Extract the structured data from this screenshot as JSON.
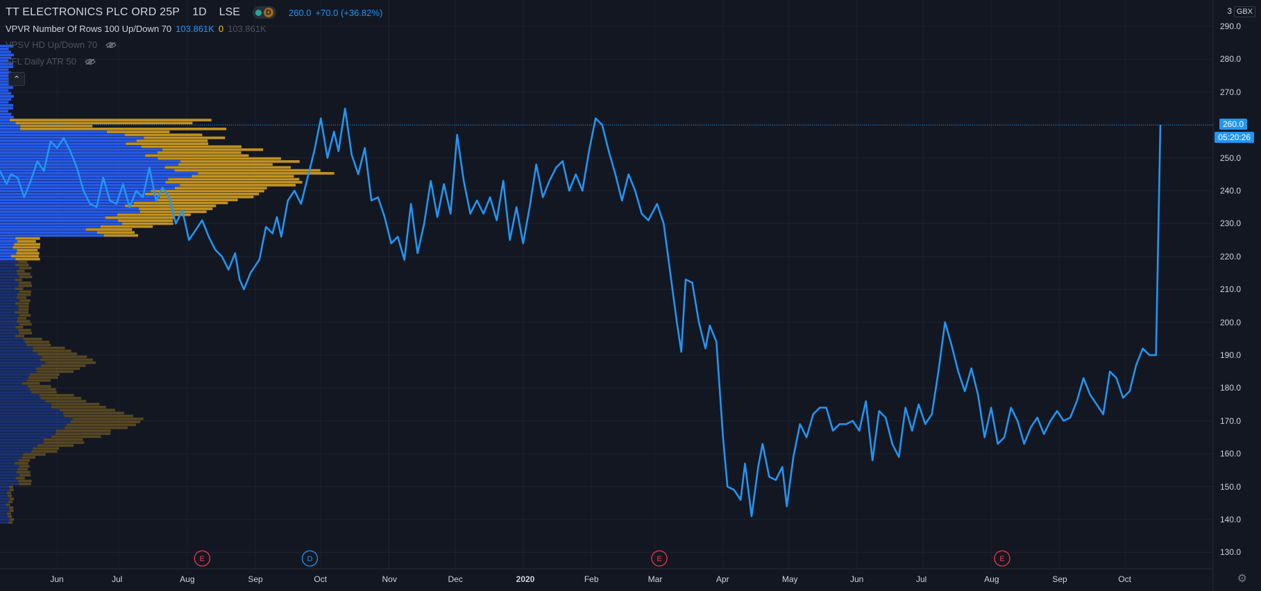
{
  "legend": {
    "symbol": "TT ELECTRONICS PLC ORD 25P",
    "interval": "1D",
    "exchange": "LSE",
    "badge": "D",
    "price": "260.0",
    "change": "+70.0 (+36.82%)",
    "vpvr_label": "VPVR Number Of Rows 100 Up/Down 70",
    "vpvr_v1": "103.861K",
    "vpvr_v2": "0",
    "vpvr_v3": "103.861K",
    "vpsv_label": "VPSV HD Up/Down 70",
    "atr_label": "SFL Daily ATR 50"
  },
  "axis": {
    "currency": "GBX",
    "top_price": "3",
    "last_price_tag": "260.0",
    "countdown_tag": "05:20:26"
  },
  "colors": {
    "background": "#131722",
    "line": "#2196f3",
    "vp_up": "#2962ff",
    "vp_down": "#d4a021",
    "grid": "#1f2330",
    "earnings": "#f23645",
    "dividend": "#2196f3"
  },
  "events": [
    {
      "type": "E",
      "date": "2019-08-08"
    },
    {
      "type": "D",
      "date": "2019-09-26"
    },
    {
      "type": "E",
      "date": "2020-03-03"
    },
    {
      "type": "E",
      "date": "2020-08-06"
    }
  ],
  "chart_data": {
    "type": "line",
    "title": "TT ELECTRONICS PLC ORD 25P",
    "ylabel": "GBX",
    "ylim": [
      125,
      298
    ],
    "xlim": [
      "2019-05-08",
      "2020-11-10"
    ],
    "y_ticks": [
      130,
      140,
      150,
      160,
      170,
      180,
      190,
      200,
      210,
      220,
      230,
      240,
      250,
      260,
      270,
      280,
      290
    ],
    "x_ticks": [
      {
        "label": "Jun",
        "date": "2019-06-03"
      },
      {
        "label": "Jul",
        "date": "2019-07-01"
      },
      {
        "label": "Aug",
        "date": "2019-08-01"
      },
      {
        "label": "Sep",
        "date": "2019-09-01"
      },
      {
        "label": "Oct",
        "date": "2019-10-01"
      },
      {
        "label": "Nov",
        "date": "2019-11-01"
      },
      {
        "label": "Dec",
        "date": "2019-12-01"
      },
      {
        "label": "2020",
        "date": "2020-01-01"
      },
      {
        "label": "Feb",
        "date": "2020-02-01"
      },
      {
        "label": "Mar",
        "date": "2020-03-01"
      },
      {
        "label": "Apr",
        "date": "2020-04-01"
      },
      {
        "label": "May",
        "date": "2020-05-01"
      },
      {
        "label": "Jun",
        "date": "2020-06-01"
      },
      {
        "label": "Jul",
        "date": "2020-07-01"
      },
      {
        "label": "Aug",
        "date": "2020-08-01"
      },
      {
        "label": "Sep",
        "date": "2020-09-01"
      },
      {
        "label": "Oct",
        "date": "2020-10-01"
      }
    ],
    "grid": true,
    "series": [
      {
        "points": [
          [
            "2019-05-08",
            246
          ],
          [
            "2019-05-11",
            242
          ],
          [
            "2019-05-13",
            245
          ],
          [
            "2019-05-16",
            244
          ],
          [
            "2019-05-19",
            238
          ],
          [
            "2019-05-22",
            243
          ],
          [
            "2019-05-25",
            249
          ],
          [
            "2019-05-28",
            246
          ],
          [
            "2019-05-31",
            255
          ],
          [
            "2019-06-03",
            253
          ],
          [
            "2019-06-06",
            256
          ],
          [
            "2019-06-09",
            252
          ],
          [
            "2019-06-12",
            247
          ],
          [
            "2019-06-15",
            240
          ],
          [
            "2019-06-18",
            236
          ],
          [
            "2019-06-21",
            235
          ],
          [
            "2019-06-24",
            244
          ],
          [
            "2019-06-27",
            237
          ],
          [
            "2019-06-30",
            236
          ],
          [
            "2019-07-03",
            242
          ],
          [
            "2019-07-06",
            235
          ],
          [
            "2019-07-09",
            240
          ],
          [
            "2019-07-12",
            238
          ],
          [
            "2019-07-15",
            247
          ],
          [
            "2019-07-18",
            237
          ],
          [
            "2019-07-21",
            241
          ],
          [
            "2019-07-24",
            238
          ],
          [
            "2019-07-27",
            230
          ],
          [
            "2019-07-30",
            234
          ],
          [
            "2019-08-02",
            225
          ],
          [
            "2019-08-05",
            228
          ],
          [
            "2019-08-08",
            231
          ],
          [
            "2019-08-11",
            226
          ],
          [
            "2019-08-14",
            222
          ],
          [
            "2019-08-17",
            220
          ],
          [
            "2019-08-20",
            216
          ],
          [
            "2019-08-23",
            221
          ],
          [
            "2019-08-25",
            213
          ],
          [
            "2019-08-27",
            210
          ],
          [
            "2019-08-30",
            215
          ],
          [
            "2019-09-03",
            219
          ],
          [
            "2019-09-06",
            229
          ],
          [
            "2019-09-09",
            227
          ],
          [
            "2019-09-11",
            232
          ],
          [
            "2019-09-13",
            226
          ],
          [
            "2019-09-16",
            237
          ],
          [
            "2019-09-19",
            240
          ],
          [
            "2019-09-22",
            236
          ],
          [
            "2019-09-25",
            244
          ],
          [
            "2019-09-28",
            252
          ],
          [
            "2019-10-01",
            262
          ],
          [
            "2019-10-04",
            250
          ],
          [
            "2019-10-07",
            258
          ],
          [
            "2019-10-09",
            252
          ],
          [
            "2019-10-12",
            265
          ],
          [
            "2019-10-15",
            251
          ],
          [
            "2019-10-18",
            245
          ],
          [
            "2019-10-21",
            253
          ],
          [
            "2019-10-24",
            237
          ],
          [
            "2019-10-27",
            238
          ],
          [
            "2019-10-30",
            232
          ],
          [
            "2019-11-02",
            224
          ],
          [
            "2019-11-05",
            226
          ],
          [
            "2019-11-08",
            219
          ],
          [
            "2019-11-11",
            236
          ],
          [
            "2019-11-14",
            221
          ],
          [
            "2019-11-17",
            230
          ],
          [
            "2019-11-20",
            243
          ],
          [
            "2019-11-23",
            232
          ],
          [
            "2019-11-26",
            242
          ],
          [
            "2019-11-29",
            233
          ],
          [
            "2019-12-02",
            257
          ],
          [
            "2019-12-05",
            243
          ],
          [
            "2019-12-08",
            233
          ],
          [
            "2019-12-11",
            237
          ],
          [
            "2019-12-14",
            233
          ],
          [
            "2019-12-17",
            238
          ],
          [
            "2019-12-20",
            231
          ],
          [
            "2019-12-23",
            243
          ],
          [
            "2019-12-26",
            225
          ],
          [
            "2019-12-29",
            235
          ],
          [
            "2020-01-01",
            224
          ],
          [
            "2020-01-04",
            235
          ],
          [
            "2020-01-07",
            248
          ],
          [
            "2020-01-10",
            238
          ],
          [
            "2020-01-13",
            243
          ],
          [
            "2020-01-16",
            247
          ],
          [
            "2020-01-19",
            249
          ],
          [
            "2020-01-22",
            240
          ],
          [
            "2020-01-25",
            245
          ],
          [
            "2020-01-28",
            240
          ],
          [
            "2020-01-31",
            252
          ],
          [
            "2020-02-03",
            262
          ],
          [
            "2020-02-06",
            260
          ],
          [
            "2020-02-09",
            252
          ],
          [
            "2020-02-12",
            245
          ],
          [
            "2020-02-15",
            237
          ],
          [
            "2020-02-18",
            245
          ],
          [
            "2020-02-21",
            240
          ],
          [
            "2020-02-24",
            233
          ],
          [
            "2020-02-27",
            231
          ],
          [
            "2020-03-02",
            236
          ],
          [
            "2020-03-05",
            230
          ],
          [
            "2020-03-08",
            215
          ],
          [
            "2020-03-11",
            200
          ],
          [
            "2020-03-13",
            191
          ],
          [
            "2020-03-15",
            213
          ],
          [
            "2020-03-18",
            212
          ],
          [
            "2020-03-21",
            200
          ],
          [
            "2020-03-24",
            192
          ],
          [
            "2020-03-26",
            199
          ],
          [
            "2020-03-29",
            194
          ],
          [
            "2020-04-01",
            165
          ],
          [
            "2020-04-03",
            150
          ],
          [
            "2020-04-06",
            149
          ],
          [
            "2020-04-09",
            146
          ],
          [
            "2020-04-11",
            157
          ],
          [
            "2020-04-14",
            141
          ],
          [
            "2020-04-17",
            156
          ],
          [
            "2020-04-19",
            163
          ],
          [
            "2020-04-22",
            153
          ],
          [
            "2020-04-25",
            152
          ],
          [
            "2020-04-28",
            156
          ],
          [
            "2020-04-30",
            144
          ],
          [
            "2020-05-03",
            159
          ],
          [
            "2020-05-06",
            169
          ],
          [
            "2020-05-09",
            165
          ],
          [
            "2020-05-12",
            172
          ],
          [
            "2020-05-15",
            174
          ],
          [
            "2020-05-18",
            174
          ],
          [
            "2020-05-21",
            167
          ],
          [
            "2020-05-24",
            169
          ],
          [
            "2020-05-27",
            169
          ],
          [
            "2020-05-30",
            170
          ],
          [
            "2020-06-02",
            167
          ],
          [
            "2020-06-05",
            176
          ],
          [
            "2020-06-08",
            158
          ],
          [
            "2020-06-11",
            173
          ],
          [
            "2020-06-14",
            171
          ],
          [
            "2020-06-17",
            163
          ],
          [
            "2020-06-20",
            159
          ],
          [
            "2020-06-23",
            174
          ],
          [
            "2020-06-26",
            167
          ],
          [
            "2020-06-29",
            175
          ],
          [
            "2020-07-02",
            169
          ],
          [
            "2020-07-05",
            172
          ],
          [
            "2020-07-08",
            185
          ],
          [
            "2020-07-11",
            200
          ],
          [
            "2020-07-14",
            193
          ],
          [
            "2020-07-17",
            185
          ],
          [
            "2020-07-20",
            179
          ],
          [
            "2020-07-23",
            186
          ],
          [
            "2020-07-26",
            178
          ],
          [
            "2020-07-29",
            165
          ],
          [
            "2020-08-01",
            174
          ],
          [
            "2020-08-04",
            163
          ],
          [
            "2020-08-07",
            165
          ],
          [
            "2020-08-10",
            174
          ],
          [
            "2020-08-13",
            170
          ],
          [
            "2020-08-16",
            163
          ],
          [
            "2020-08-19",
            168
          ],
          [
            "2020-08-22",
            171
          ],
          [
            "2020-08-25",
            166
          ],
          [
            "2020-08-28",
            170
          ],
          [
            "2020-08-31",
            173
          ],
          [
            "2020-09-03",
            170
          ],
          [
            "2020-09-06",
            171
          ],
          [
            "2020-09-09",
            176
          ],
          [
            "2020-09-12",
            183
          ],
          [
            "2020-09-15",
            178
          ],
          [
            "2020-09-18",
            175
          ],
          [
            "2020-09-21",
            172
          ],
          [
            "2020-09-24",
            185
          ],
          [
            "2020-09-27",
            183
          ],
          [
            "2020-09-30",
            177
          ],
          [
            "2020-10-03",
            179
          ],
          [
            "2020-10-06",
            187
          ],
          [
            "2020-10-09",
            192
          ],
          [
            "2020-10-12",
            190
          ],
          [
            "2020-10-15",
            190
          ],
          [
            "2020-10-17",
            260
          ]
        ]
      }
    ]
  }
}
